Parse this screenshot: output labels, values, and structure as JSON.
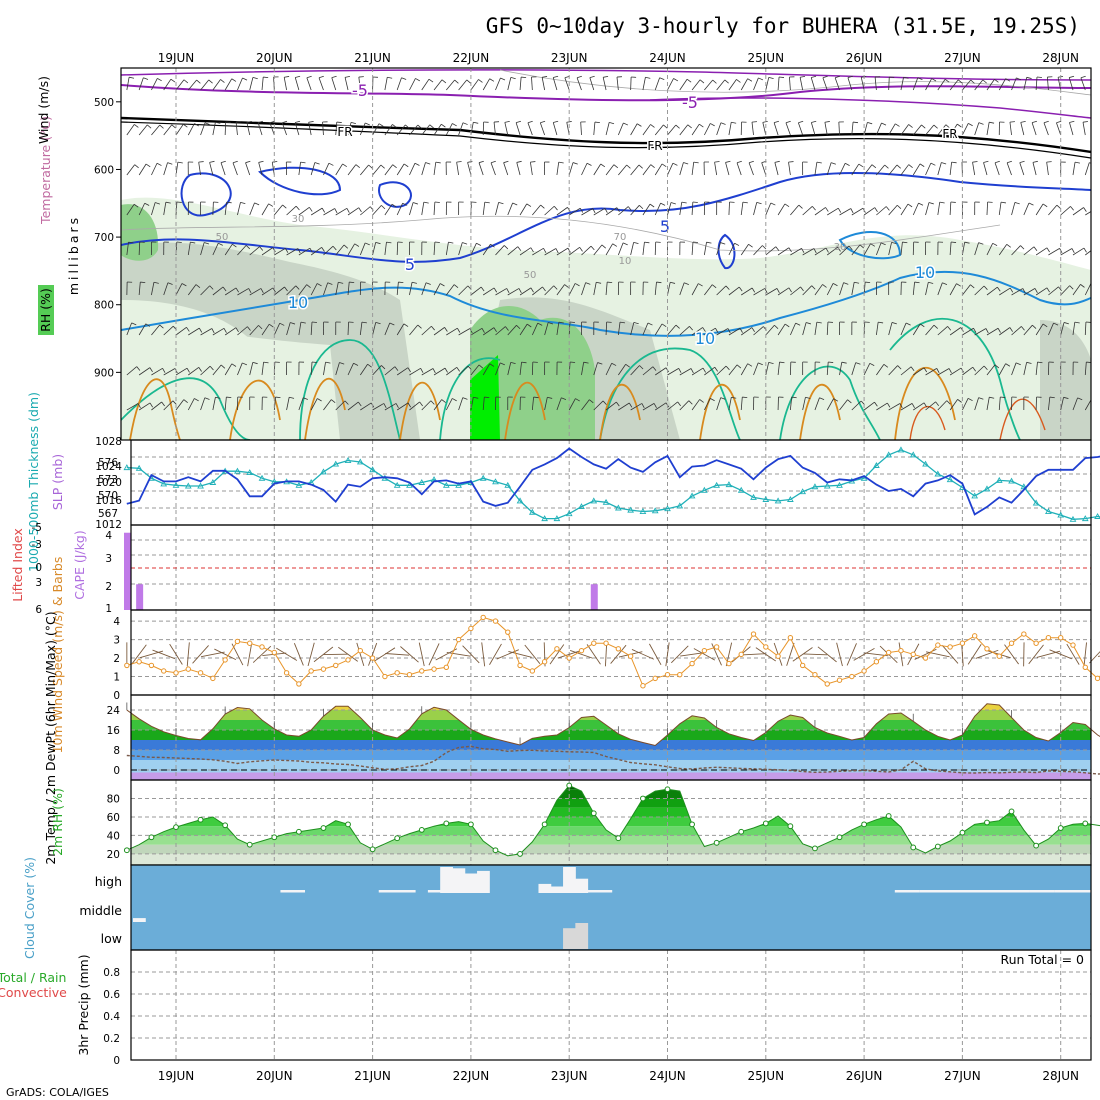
{
  "title": "GFS 0~10day 3-hourly for BUHERA (31.5E, 19.25S)",
  "footer": "GrADS: COLA/IGES",
  "colors": {
    "frame": "#000000",
    "grid": "#999999",
    "temp_line": "#1f3fd0",
    "thick_line": "#1fb0b8",
    "cape_bar": "#c07ae8",
    "wind_line": "#e8952a",
    "barb": "#7a5a3c",
    "rh_line": "#1e8f1e",
    "cloud_bg": "#6badd8",
    "cloud_fill": "#f4f4f6",
    "li_zero": "#dd3333",
    "rh_green": "#44bb44",
    "purple_iso": "#8a1fb0"
  },
  "chart_data": {
    "type": "line",
    "time_axis": {
      "labels": [
        "19JUN",
        "20JUN",
        "21JUN",
        "22JUN",
        "23JUN",
        "24JUN",
        "25JUN",
        "26JUN",
        "27JUN",
        "28JUN"
      ],
      "first_day_offset_steps": 4,
      "steps_per_day": 8,
      "total_steps": 82
    },
    "panels": [
      {
        "id": "upper_air",
        "ylabel_parts": [
          "RH (%)",
          "Temperature (°C)",
          "Wind (m/s)"
        ],
        "yunits": "millibars",
        "yticks": [
          500,
          600,
          700,
          800,
          900
        ],
        "ylim": [
          1000,
          450
        ],
        "isotherm_labels": [
          "-5",
          "-5",
          "FR",
          "FR",
          "FR",
          "5",
          "5",
          "10",
          "10",
          "10"
        ],
        "rh_labels": [
          "50",
          "30",
          "50",
          "70",
          "10",
          "30"
        ]
      },
      {
        "id": "thickness_slp",
        "ylabel_left": "1000-500mb Thickness (dm)",
        "ylabel_right": "SLP (mb)",
        "left_ticks": [
          "567",
          "570",
          "573",
          "576"
        ],
        "right_ticks": [
          "1012",
          "1016",
          "1020",
          "1024",
          "1028"
        ],
        "slp_range": [
          1012,
          1028
        ],
        "thickness_range": [
          566,
          578
        ],
        "series": [
          {
            "name": "SLP",
            "axis": "right",
            "values": [
              1016.0,
              1016.6,
              1021.4,
              1020.2,
              1020.2,
              1021.0,
              1020.2,
              1022.2,
              1022.2,
              1020.6,
              1017.4,
              1017.4,
              1019.8,
              1020.2,
              1020.2,
              1019.6,
              1018.6,
              1016.4,
              1019.6,
              1019.2,
              1020.8,
              1021.0,
              1020.8,
              1020.0,
              1017.8,
              1020.2,
              1020.4,
              1019.8,
              1020.2,
              1016.4,
              1015.6,
              1016.2,
              1019.2,
              1022.4,
              1023.4,
              1024.6,
              1026.4,
              1024.8,
              1023.4,
              1022.6,
              1024.4,
              1022.8,
              1022.0,
              1023.8,
              1025.0,
              1021.0,
              1023.0,
              1023.2,
              1024.2,
              1023.4,
              1022.6,
              1020.6,
              1022.8,
              1024.4,
              1025.0,
              1022.8,
              1021.8,
              1020.0,
              1020.6,
              1020.4,
              1021.2,
              1019.6,
              1018.4,
              1018.8,
              1017.4,
              1019.8,
              1020.4,
              1021.4,
              1019.8,
              1014.0,
              1015.4,
              1017.2,
              1016.2,
              1018.6,
              1021.2,
              1022.4,
              1022.4,
              1022.4,
              1024.6,
              1024.8,
              1025.2,
              1026.4
            ]
          },
          {
            "name": "Thickness",
            "axis": "left",
            "values": [
              574.1,
              574.0,
              572.6,
              571.8,
              571.6,
              571.5,
              571.5,
              572.0,
              573.6,
              573.6,
              573.4,
              572.6,
              572.1,
              572.1,
              571.6,
              572.0,
              573.5,
              574.6,
              575.1,
              574.9,
              573.8,
              572.6,
              571.6,
              571.6,
              572.0,
              572.4,
              571.6,
              571.6,
              572.0,
              572.6,
              572.1,
              571.6,
              569.4,
              567.8,
              566.9,
              566.9,
              567.6,
              568.6,
              569.4,
              569.2,
              568.4,
              568.1,
              567.9,
              568.0,
              568.3,
              568.7,
              570.1,
              570.9,
              571.6,
              571.7,
              570.9,
              569.9,
              569.6,
              569.4,
              569.6,
              570.7,
              571.4,
              571.5,
              571.6,
              572.2,
              572.6,
              574.4,
              575.9,
              576.6,
              575.9,
              574.6,
              573.2,
              572.4,
              571.3,
              570.1,
              571.1,
              572.3,
              572.2,
              571.4,
              569.1,
              567.9,
              567.4,
              566.8,
              566.9,
              567.2,
              566.9,
              567.3
            ]
          }
        ]
      },
      {
        "id": "li_cape",
        "ylabel_left": "Lifted Index",
        "ylabel_right": "CAPE (J/kg)",
        "left_ticks": [
          "6",
          "3",
          "0",
          "-3",
          "-5"
        ],
        "right_ticks": [
          "1",
          "2",
          "3",
          "4"
        ],
        "cape_range": [
          1,
          4.3
        ],
        "li_zero_label": "0",
        "cape_bars": [
          {
            "step": 0,
            "value": 4.0
          },
          {
            "step": 1,
            "value": 2.0
          },
          {
            "step": 38,
            "value": 2.0
          }
        ]
      },
      {
        "id": "wind10m",
        "ylabel": "10m Wind Speed (m/s) & Barbs",
        "yticks": [
          "0",
          "1",
          "2",
          "3",
          "4"
        ],
        "ylim": [
          0,
          4.6
        ],
        "series": [
          {
            "name": "10m wind speed",
            "values": [
              1.6,
              1.8,
              1.6,
              1.3,
              1.2,
              1.4,
              1.2,
              0.9,
              1.9,
              2.9,
              2.8,
              2.6,
              2.3,
              1.2,
              0.6,
              1.3,
              1.4,
              1.6,
              1.9,
              2.4,
              2.0,
              1.0,
              1.2,
              1.1,
              1.3,
              1.4,
              1.5,
              3.0,
              3.6,
              4.2,
              4.0,
              3.4,
              1.6,
              1.3,
              1.8,
              2.5,
              2.0,
              2.4,
              2.8,
              2.8,
              2.5,
              2.1,
              0.5,
              0.9,
              1.1,
              1.1,
              1.7,
              2.4,
              2.6,
              1.7,
              2.2,
              3.3,
              2.6,
              2.1,
              3.1,
              1.6,
              1.1,
              0.6,
              0.8,
              1.0,
              1.3,
              1.8,
              2.3,
              2.4,
              2.2,
              2.0,
              2.7,
              2.6,
              2.8,
              3.2,
              2.5,
              2.1,
              2.8,
              3.3,
              2.8,
              3.1,
              3.1,
              2.7,
              1.5,
              0.9,
              1.5,
              2.3
            ]
          }
        ]
      },
      {
        "id": "temp2m",
        "ylabel": "2m Temp / 2m DewPt (6hr Min/Max) (°C)",
        "yticks": [
          "0",
          "8",
          "16",
          "24"
        ],
        "ylim": [
          -4,
          30
        ],
        "series": [
          {
            "name": "2m temperature",
            "values": [
              24.0,
              20.5,
              17.5,
              15.3,
              13.8,
              12.6,
              12.1,
              16.5,
              22.4,
              25.0,
              24.5,
              20.0,
              16.5,
              14.0,
              13.5,
              16.0,
              21.5,
              25.5,
              25.5,
              21.0,
              16.0,
              14.0,
              12.8,
              16.4,
              22.5,
              25.1,
              24.0,
              20.1,
              16.3,
              14.0,
              12.5,
              11.2,
              10.0,
              12.7,
              13.5,
              14.0,
              17.0,
              21.0,
              21.5,
              18.0,
              14.5,
              12.3,
              11.0,
              9.8,
              14.0,
              18.5,
              21.7,
              20.8,
              17.0,
              14.5,
              13.0,
              11.8,
              15.0,
              19.5,
              22.0,
              21.0,
              17.0,
              14.8,
              13.5,
              12.0,
              13.0,
              18.5,
              22.4,
              22.8,
              19.5,
              16.0,
              13.5,
              12.0,
              14.0,
              21.5,
              26.5,
              26.0,
              21.0,
              16.0,
              13.0,
              11.6,
              15.0,
              19.0,
              18.2,
              14.0,
              11.0,
              9.0
            ]
          },
          {
            "name": "2m dewpoint",
            "values": [
              5.8,
              5.5,
              5.1,
              5.0,
              4.8,
              4.6,
              4.4,
              4.1,
              3.5,
              2.6,
              3.3,
              3.7,
              4.0,
              3.8,
              3.6,
              3.1,
              2.9,
              2.4,
              2.2,
              1.6,
              0.9,
              0.3,
              0.5,
              1.3,
              1.8,
              3.5,
              7.0,
              9.0,
              9.5,
              8.5,
              8.2,
              7.5,
              7.8,
              7.9,
              7.6,
              7.5,
              7.3,
              7.2,
              7.0,
              5.4,
              4.2,
              3.0,
              2.5,
              2.1,
              1.3,
              0.6,
              0.4,
              0.8,
              1.1,
              0.9,
              0.6,
              0.5,
              0.3,
              0.1,
              -0.2,
              -0.6,
              -0.9,
              -0.8,
              -0.5,
              -0.3,
              -0.2,
              -0.5,
              -0.8,
              0.1,
              3.5,
              0.5,
              -0.4,
              -0.7,
              -1.1,
              -1.2,
              -1.0,
              -1.1,
              -0.9,
              -0.8,
              -1.0,
              -0.4,
              -0.5,
              -0.7,
              -1.1,
              -1.6,
              -1.5,
              -1.2
            ]
          }
        ]
      },
      {
        "id": "rh2m",
        "ylabel": "2m RH (%)",
        "yticks": [
          "20",
          "40",
          "60",
          "80"
        ],
        "ylim": [
          8,
          100
        ],
        "series": [
          {
            "name": "2m relative humidity",
            "values": [
              24,
              30,
              38,
              44,
              49,
              53,
              57,
              60,
              51,
              36,
              30,
              34,
              38,
              42,
              44,
              46,
              48,
              56,
              52,
              32,
              25,
              31,
              37,
              42,
              46,
              50,
              53,
              55,
              52,
              34,
              24,
              18,
              20,
              33,
              52,
              78,
              94,
              88,
              64,
              46,
              37,
              58,
              80,
              88,
              90,
              88,
              52,
              28,
              32,
              38,
              44,
              48,
              53,
              61,
              50,
              31,
              26,
              32,
              38,
              46,
              52,
              57,
              61,
              49,
              27,
              21,
              28,
              34,
              43,
              52,
              54,
              56,
              66,
              46,
              29,
              36,
              48,
              52,
              53,
              51,
              49,
              51
            ]
          }
        ]
      },
      {
        "id": "cloud",
        "ylabel": "Cloud Cover (%)",
        "level_labels": [
          "high",
          "middle",
          "low"
        ],
        "blocks": [
          {
            "step": 26,
            "level": "high",
            "value": 100
          },
          {
            "step": 27,
            "level": "high",
            "value": 95
          },
          {
            "step": 28,
            "level": "high",
            "value": 75
          },
          {
            "step": 29,
            "level": "high",
            "value": 85
          },
          {
            "step": 34,
            "level": "high",
            "value": 35
          },
          {
            "step": 35,
            "level": "high",
            "value": 25
          },
          {
            "step": 36,
            "level": "high",
            "value": 100
          },
          {
            "step": 37,
            "level": "high",
            "value": 55
          },
          {
            "step": 36,
            "level": "low",
            "value": 80
          },
          {
            "step": 37,
            "level": "low",
            "value": 100
          },
          {
            "step": 1,
            "level": "middle",
            "value": 15
          }
        ],
        "thin_high_runs": [
          [
            13,
            14
          ],
          [
            21,
            23
          ],
          [
            25,
            26
          ],
          [
            38,
            39
          ],
          [
            63,
            64
          ],
          [
            65,
            73
          ],
          [
            74,
            75
          ],
          [
            76,
            78
          ]
        ]
      },
      {
        "id": "precip",
        "ylabel_parts": [
          "Total / Rain",
          "Convective",
          "3hr Precip (mm)"
        ],
        "yticks": [
          "0",
          "0.2",
          "0.4",
          "0.6",
          "0.8"
        ],
        "ylim": [
          0,
          1.0
        ],
        "run_total": "Run Total = 0"
      }
    ]
  }
}
